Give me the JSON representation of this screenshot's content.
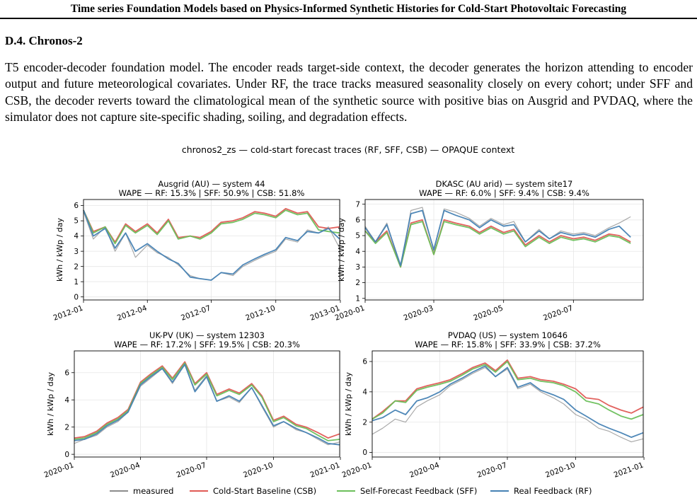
{
  "header": {
    "running_title": "Time series Foundation Models based on Physics-Informed Synthetic Histories for Cold-Start Photovoltaic Forecasting"
  },
  "section": {
    "title": "D.4. Chronos-2",
    "paragraph": "T5 encoder-decoder foundation model. The encoder reads target-side context, the decoder generates the horizon attending to encoder output and future meteorological covariates. Under RF, the trace tracks measured seasonality closely on every cohort; under SFF and CSB, the decoder reverts toward the climatological mean of the synthetic source with positive bias on Ausgrid and PVDAQ, where the simulator does not capture site-specific shading, soiling, and degradation effects."
  },
  "figure": {
    "suptitle": "chronos2_zs — cold-start forecast traces (RF, SFF, CSB) — OPAQUE context",
    "legend": [
      {
        "key": "measured",
        "label": "measured",
        "color": "#8c8c8c"
      },
      {
        "key": "csb",
        "label": "Cold-Start Baseline (CSB)",
        "color": "#e05a55"
      },
      {
        "key": "sff",
        "label": "Self-Forecast Feedback (SFF)",
        "color": "#6cbf5b"
      },
      {
        "key": "rf",
        "label": "Real Feedback (RF)",
        "color": "#4682b4"
      }
    ]
  },
  "chart_data": [
    {
      "type": "line",
      "title": "Ausgrid (AU) — system 44",
      "subtitle": "WAPE — RF: 15.3% | SFF: 50.9% | CSB: 51.8%",
      "ylabel": "kWh / kWp / day",
      "xlim": [
        "2012-01-01",
        "2012-12-31"
      ],
      "ylim": [
        -0.2,
        6.4
      ],
      "xticks": [
        "2012-01",
        "2012-04",
        "2012-07",
        "2012-10",
        "2013-01"
      ],
      "yticks": [
        0,
        1,
        2,
        3,
        4,
        5,
        6
      ],
      "grid": true,
      "x": [
        "2012-01-01",
        "2012-01-15",
        "2012-02-01",
        "2012-02-15",
        "2012-03-01",
        "2012-03-15",
        "2012-04-01",
        "2012-04-15",
        "2012-05-01",
        "2012-05-15",
        "2012-06-01",
        "2012-06-15",
        "2012-07-01",
        "2012-07-15",
        "2012-08-01",
        "2012-08-15",
        "2012-09-01",
        "2012-09-15",
        "2012-10-01",
        "2012-10-15",
        "2012-11-01",
        "2012-11-15",
        "2012-12-01",
        "2012-12-15",
        "2012-12-31"
      ],
      "series": [
        {
          "name": "measured",
          "values": [
            5.6,
            3.8,
            4.6,
            3.0,
            4.2,
            2.6,
            3.4,
            2.9,
            2.6,
            2.1,
            1.4,
            1.2,
            1.1,
            1.6,
            1.4,
            2.0,
            2.4,
            2.7,
            3.0,
            3.8,
            3.6,
            4.4,
            4.2,
            4.6,
            3.2
          ]
        },
        {
          "name": "Cold-Start Baseline (CSB)",
          "values": [
            5.7,
            4.3,
            4.6,
            3.6,
            4.8,
            4.3,
            4.8,
            4.2,
            5.1,
            3.9,
            4.0,
            3.9,
            4.3,
            4.9,
            5.0,
            5.2,
            5.6,
            5.5,
            5.3,
            5.8,
            5.5,
            5.6,
            4.6,
            4.5,
            4.6
          ]
        },
        {
          "name": "Self-Forecast Feedback (SFF)",
          "values": [
            5.7,
            4.2,
            4.6,
            3.5,
            4.7,
            4.2,
            4.7,
            4.1,
            5.0,
            3.8,
            4.0,
            3.8,
            4.2,
            4.8,
            4.9,
            5.1,
            5.5,
            5.4,
            5.2,
            5.7,
            5.4,
            5.5,
            4.4,
            4.3,
            4.2
          ]
        },
        {
          "name": "Real Feedback (RF)",
          "values": [
            5.7,
            4.0,
            4.5,
            3.2,
            4.2,
            3.0,
            3.5,
            3.0,
            2.5,
            2.2,
            1.3,
            1.2,
            1.1,
            1.6,
            1.5,
            2.1,
            2.5,
            2.8,
            3.1,
            3.9,
            3.7,
            4.3,
            4.2,
            4.5,
            3.8
          ]
        }
      ]
    },
    {
      "type": "line",
      "title": "DKASC (AU arid) — system site17",
      "subtitle": "WAPE — RF: 6.0% | SFF: 9.4% | CSB: 9.4%",
      "ylabel": "kWh / kWp / day",
      "xlim": [
        "2020-01-01",
        "2020-08-31"
      ],
      "ylim": [
        0.9,
        7.3
      ],
      "xticks": [
        "2020-01",
        "2020-03",
        "2020-05",
        "2020-07"
      ],
      "yticks": [
        1,
        2,
        3,
        4,
        5,
        6,
        7
      ],
      "grid": true,
      "x": [
        "2020-01-01",
        "2020-01-10",
        "2020-01-20",
        "2020-02-01",
        "2020-02-10",
        "2020-02-20",
        "2020-03-01",
        "2020-03-10",
        "2020-03-20",
        "2020-04-01",
        "2020-04-10",
        "2020-04-20",
        "2020-05-01",
        "2020-05-10",
        "2020-05-20",
        "2020-06-01",
        "2020-06-10",
        "2020-06-20",
        "2020-07-01",
        "2020-07-10",
        "2020-07-20",
        "2020-08-01",
        "2020-08-10",
        "2020-08-20"
      ],
      "series": [
        {
          "name": "measured",
          "values": [
            5.6,
            4.6,
            5.8,
            3.0,
            6.6,
            6.8,
            4.0,
            6.7,
            6.5,
            6.1,
            5.6,
            6.1,
            5.7,
            5.9,
            4.6,
            5.4,
            4.8,
            5.3,
            5.1,
            5.2,
            5.0,
            5.5,
            5.8,
            6.2
          ]
        },
        {
          "name": "Cold-Start Baseline (CSB)",
          "values": [
            5.3,
            4.6,
            5.3,
            3.0,
            5.8,
            6.0,
            3.8,
            6.0,
            5.8,
            5.6,
            5.2,
            5.6,
            5.2,
            5.4,
            4.4,
            5.0,
            4.6,
            5.0,
            4.8,
            4.9,
            4.7,
            5.1,
            5.0,
            4.6
          ]
        },
        {
          "name": "Self-Forecast Feedback (SFF)",
          "values": [
            5.3,
            4.5,
            5.2,
            3.0,
            5.7,
            5.9,
            3.8,
            5.9,
            5.7,
            5.5,
            5.1,
            5.5,
            5.1,
            5.3,
            4.3,
            4.9,
            4.5,
            4.9,
            4.7,
            4.8,
            4.6,
            5.0,
            4.9,
            4.5
          ]
        },
        {
          "name": "Real Feedback (RF)",
          "values": [
            5.5,
            4.6,
            5.7,
            3.1,
            6.4,
            6.6,
            4.1,
            6.6,
            6.3,
            6.0,
            5.5,
            6.0,
            5.6,
            5.7,
            4.6,
            5.3,
            4.8,
            5.2,
            5.0,
            5.1,
            4.9,
            5.4,
            5.6,
            4.9
          ]
        }
      ]
    },
    {
      "type": "line",
      "title": "UK-PV (UK) — system 12303",
      "subtitle": "WAPE — RF: 17.2% | SFF: 19.5% | CSB: 20.3%",
      "ylabel": "kWh / kWp / day",
      "xlim": [
        "2020-01-01",
        "2020-12-31"
      ],
      "ylim": [
        -0.2,
        7.6
      ],
      "xticks": [
        "2020-01",
        "2020-04",
        "2020-07",
        "2020-10",
        "2021-01"
      ],
      "yticks": [
        0,
        2,
        4,
        6
      ],
      "grid": true,
      "x": [
        "2020-01-01",
        "2020-01-15",
        "2020-02-01",
        "2020-02-15",
        "2020-03-01",
        "2020-03-15",
        "2020-04-01",
        "2020-04-15",
        "2020-05-01",
        "2020-05-15",
        "2020-06-01",
        "2020-06-15",
        "2020-07-01",
        "2020-07-15",
        "2020-08-01",
        "2020-08-15",
        "2020-09-01",
        "2020-09-15",
        "2020-10-01",
        "2020-10-15",
        "2020-11-01",
        "2020-11-15",
        "2020-12-01",
        "2020-12-15",
        "2020-12-31"
      ],
      "series": [
        {
          "name": "measured",
          "values": [
            0.8,
            1.1,
            1.4,
            2.0,
            2.4,
            3.1,
            5.0,
            5.6,
            6.3,
            5.2,
            6.6,
            4.7,
            5.8,
            3.9,
            4.2,
            3.8,
            4.9,
            3.5,
            2.0,
            2.4,
            1.8,
            1.6,
            1.1,
            0.7,
            0.9
          ]
        },
        {
          "name": "Cold-Start Baseline (CSB)",
          "values": [
            1.2,
            1.3,
            1.7,
            2.3,
            2.7,
            3.3,
            5.3,
            5.9,
            6.5,
            5.6,
            6.8,
            5.2,
            6.0,
            4.4,
            4.8,
            4.5,
            5.2,
            4.3,
            2.5,
            2.8,
            2.2,
            2.0,
            1.6,
            1.2,
            1.5
          ]
        },
        {
          "name": "Self-Forecast Feedback (SFF)",
          "values": [
            1.1,
            1.2,
            1.6,
            2.2,
            2.6,
            3.2,
            5.2,
            5.8,
            6.4,
            5.5,
            6.7,
            5.1,
            5.9,
            4.3,
            4.7,
            4.4,
            5.1,
            4.2,
            2.4,
            2.7,
            2.1,
            1.9,
            1.4,
            1.0,
            1.1
          ]
        },
        {
          "name": "Real Feedback (RF)",
          "values": [
            1.0,
            1.1,
            1.5,
            2.1,
            2.5,
            3.1,
            5.1,
            5.7,
            6.3,
            5.3,
            6.6,
            4.6,
            5.7,
            3.9,
            4.3,
            3.9,
            4.9,
            3.6,
            2.1,
            2.4,
            1.9,
            1.6,
            1.2,
            0.8,
            0.7
          ]
        }
      ]
    },
    {
      "type": "line",
      "title": "PVDAQ (US) — system 10646",
      "subtitle": "WAPE — RF: 15.8% | SFF: 33.9% | CSB: 37.2%",
      "ylabel": "kWh / kWp / day",
      "xlim": [
        "2020-01-01",
        "2020-12-31"
      ],
      "ylim": [
        -0.3,
        6.7
      ],
      "xticks": [
        "2020-01",
        "2020-04",
        "2020-07",
        "2020-10",
        "2021-01"
      ],
      "yticks": [
        0,
        2,
        4,
        6
      ],
      "grid": true,
      "x": [
        "2020-01-01",
        "2020-01-15",
        "2020-02-01",
        "2020-02-15",
        "2020-03-01",
        "2020-03-15",
        "2020-04-01",
        "2020-04-15",
        "2020-05-01",
        "2020-05-15",
        "2020-06-01",
        "2020-06-15",
        "2020-07-01",
        "2020-07-15",
        "2020-08-01",
        "2020-08-15",
        "2020-09-01",
        "2020-09-15",
        "2020-10-01",
        "2020-10-15",
        "2020-11-01",
        "2020-11-15",
        "2020-12-01",
        "2020-12-15",
        "2020-12-31"
      ],
      "series": [
        {
          "name": "measured",
          "values": [
            1.2,
            1.6,
            2.2,
            2.0,
            3.0,
            3.4,
            3.8,
            4.4,
            4.8,
            5.2,
            5.6,
            5.0,
            5.5,
            4.2,
            4.5,
            4.0,
            3.6,
            3.2,
            2.5,
            2.2,
            1.6,
            1.4,
            1.0,
            0.7,
            0.9
          ]
        },
        {
          "name": "Cold-Start Baseline (CSB)",
          "values": [
            2.2,
            2.7,
            3.4,
            3.4,
            4.2,
            4.4,
            4.6,
            4.8,
            5.2,
            5.6,
            5.9,
            5.4,
            6.1,
            4.9,
            5.0,
            4.8,
            4.7,
            4.5,
            4.2,
            3.6,
            3.5,
            3.1,
            2.8,
            2.6,
            3.0
          ]
        },
        {
          "name": "Self-Forecast Feedback (SFF)",
          "values": [
            2.2,
            2.6,
            3.4,
            3.3,
            4.1,
            4.3,
            4.5,
            4.7,
            5.1,
            5.5,
            5.8,
            5.3,
            6.0,
            4.8,
            4.9,
            4.7,
            4.6,
            4.4,
            4.0,
            3.4,
            3.2,
            2.8,
            2.4,
            2.2,
            2.5
          ]
        },
        {
          "name": "Real Feedback (RF)",
          "values": [
            2.1,
            2.3,
            2.8,
            2.5,
            3.4,
            3.6,
            4.0,
            4.5,
            4.9,
            5.3,
            5.7,
            5.0,
            5.6,
            4.3,
            4.6,
            4.1,
            3.8,
            3.5,
            2.8,
            2.4,
            1.9,
            1.6,
            1.3,
            1.0,
            1.3
          ]
        }
      ]
    }
  ]
}
